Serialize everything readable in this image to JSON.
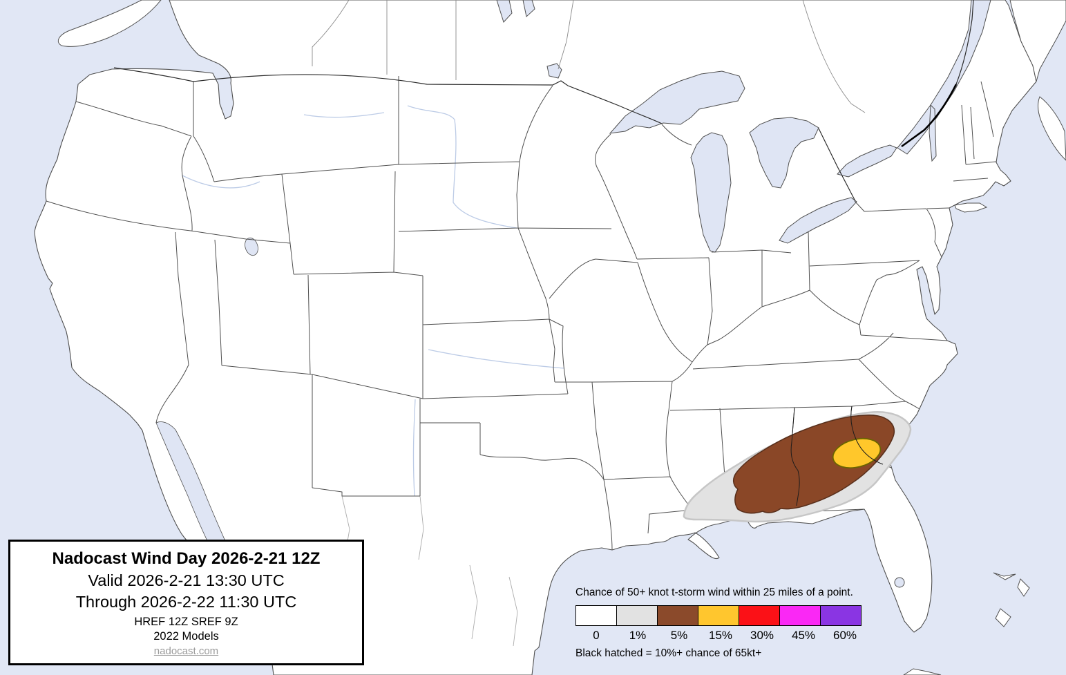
{
  "title_box": {
    "title": "Nadocast Wind Day 2026-2-21 12Z",
    "valid": "Valid 2026-2-21 13:30 UTC",
    "through": "Through 2026-2-22 11:30 UTC",
    "models_line1": "HREF 12Z SREF 9Z",
    "models_line2": "2022 Models",
    "site": "nadocast.com"
  },
  "legend": {
    "title": "Chance of 50+ knot t-storm wind within 25 miles of a point.",
    "entries": [
      {
        "label": "0",
        "color": "#FFFFFF"
      },
      {
        "label": "1%",
        "color": "#E2E2E2"
      },
      {
        "label": "5%",
        "color": "#8B4A2B"
      },
      {
        "label": "15%",
        "color": "#FFC62E"
      },
      {
        "label": "30%",
        "color": "#FB1117"
      },
      {
        "label": "45%",
        "color": "#FA28F5"
      },
      {
        "label": "60%",
        "color": "#8A35E3"
      }
    ],
    "note": "Black hatched = 10%+ chance of 65kt+"
  },
  "map": {
    "colors": {
      "ocean": "#E1E7F5",
      "land": "#FFFFFF",
      "border": "#4F4F4F",
      "country-border": "#2B2B2B",
      "province-border": "#8A8A8A",
      "mexico-border": "#ABABAB",
      "water-line": "#BCCBE6",
      "lake": "#DFE5F4"
    },
    "risk_areas": [
      {
        "level": "1%",
        "region": "southeast-us-broad",
        "color": "#E2E2E2",
        "outline": "#C6C6C6"
      },
      {
        "level": "5%",
        "region": "georgia-south-carolina",
        "color": "#8A4727",
        "outline": "#59301C"
      },
      {
        "level": "15%",
        "region": "east-georgia-sc-coast",
        "color": "#FFC72B",
        "outline": "#6A6400"
      }
    ]
  }
}
